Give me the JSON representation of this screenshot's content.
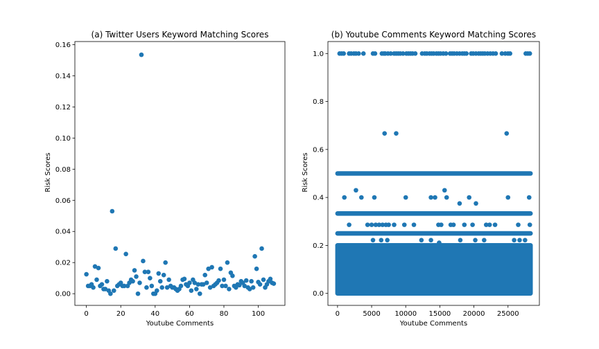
{
  "chart_data": [
    {
      "type": "scatter",
      "title": "(a) Twitter Users Keyword Matching Scores",
      "xlabel": "Youtube Comments",
      "ylabel": "Risk Scores",
      "xlim": [
        -6.7,
        115.5
      ],
      "ylim": [
        -0.0075,
        0.162
      ],
      "xticks": [
        0,
        20,
        40,
        60,
        80,
        100
      ],
      "xtick_labels": [
        "0",
        "20",
        "40",
        "60",
        "80",
        "100"
      ],
      "yticks": [
        0.0,
        0.02,
        0.04,
        0.06,
        0.08,
        0.1,
        0.12,
        0.14,
        0.16
      ],
      "ytick_labels": [
        "0.00",
        "0.02",
        "0.04",
        "0.06",
        "0.08",
        "0.10",
        "0.12",
        "0.14",
        "0.16"
      ],
      "grid": false,
      "marker_color": "#1f77b4",
      "points": [
        [
          0,
          0.0125
        ],
        [
          1,
          0.005
        ],
        [
          2,
          0.005
        ],
        [
          3,
          0.006
        ],
        [
          4,
          0.004
        ],
        [
          5,
          0.0175
        ],
        [
          6,
          0.009
        ],
        [
          7,
          0.0165
        ],
        [
          8,
          0.005
        ],
        [
          9,
          0.006
        ],
        [
          10,
          0.003
        ],
        [
          11,
          0.003
        ],
        [
          12,
          0.008
        ],
        [
          13,
          0.002
        ],
        [
          14,
          0.0
        ],
        [
          15,
          0.053
        ],
        [
          16,
          0.002
        ],
        [
          17,
          0.029
        ],
        [
          18,
          0.005
        ],
        [
          19,
          0.006
        ],
        [
          20,
          0.007
        ],
        [
          21,
          0.005
        ],
        [
          22,
          0.005
        ],
        [
          23,
          0.0255
        ],
        [
          24,
          0.005
        ],
        [
          25,
          0.007
        ],
        [
          26,
          0.009
        ],
        [
          27,
          0.008
        ],
        [
          28,
          0.015
        ],
        [
          29,
          0.011
        ],
        [
          30,
          0.0
        ],
        [
          31,
          0.007
        ],
        [
          32,
          0.1535
        ],
        [
          33,
          0.021
        ],
        [
          34,
          0.014
        ],
        [
          35,
          0.004
        ],
        [
          36,
          0.014
        ],
        [
          37,
          0.01
        ],
        [
          38,
          0.005
        ],
        [
          39,
          0.0
        ],
        [
          40,
          0.0
        ],
        [
          41,
          0.002
        ],
        [
          42,
          0.013
        ],
        [
          43,
          0.008
        ],
        [
          44,
          0.004
        ],
        [
          45,
          0.012
        ],
        [
          46,
          0.02
        ],
        [
          47,
          0.004
        ],
        [
          48,
          0.009
        ],
        [
          49,
          0.005
        ],
        [
          50,
          0.004
        ],
        [
          51,
          0.004
        ],
        [
          52,
          0.003
        ],
        [
          53,
          0.002
        ],
        [
          54,
          0.003
        ],
        [
          55,
          0.005
        ],
        [
          56,
          0.009
        ],
        [
          57,
          0.0095
        ],
        [
          58,
          0.006
        ],
        [
          59,
          0.005
        ],
        [
          60,
          0.007
        ],
        [
          61,
          0.002
        ],
        [
          62,
          0.009
        ],
        [
          63,
          0.007
        ],
        [
          64,
          0.003
        ],
        [
          65,
          0.006
        ],
        [
          66,
          0.0
        ],
        [
          67,
          0.006
        ],
        [
          68,
          0.006
        ],
        [
          69,
          0.012
        ],
        [
          70,
          0.007
        ],
        [
          71,
          0.016
        ],
        [
          72,
          0.004
        ],
        [
          73,
          0.017
        ],
        [
          74,
          0.005
        ],
        [
          75,
          0.006
        ],
        [
          76,
          0.007
        ],
        [
          77,
          0.0085
        ],
        [
          78,
          0.016
        ],
        [
          79,
          0.005
        ],
        [
          80,
          0.009
        ],
        [
          81,
          0.005
        ],
        [
          82,
          0.02
        ],
        [
          83,
          0.003
        ],
        [
          84,
          0.0135
        ],
        [
          85,
          0.0115
        ],
        [
          86,
          0.005
        ],
        [
          87,
          0.004
        ],
        [
          88,
          0.006
        ],
        [
          89,
          0.0055
        ],
        [
          90,
          0.008
        ],
        [
          91,
          0.007
        ],
        [
          92,
          0.005
        ],
        [
          93,
          0.0085
        ],
        [
          94,
          0.004
        ],
        [
          95,
          0.003
        ],
        [
          96,
          0.008
        ],
        [
          97,
          0.004
        ],
        [
          98,
          0.024
        ],
        [
          99,
          0.016
        ],
        [
          100,
          0.0075
        ],
        [
          101,
          0.006
        ],
        [
          102,
          0.029
        ],
        [
          103,
          0.009
        ],
        [
          104,
          0.004
        ],
        [
          105,
          0.006
        ],
        [
          106,
          0.008
        ],
        [
          107,
          0.0095
        ],
        [
          108,
          0.007
        ],
        [
          109,
          0.0065
        ]
      ]
    },
    {
      "type": "scatter",
      "title": "(b) Youtube Comments Keyword Matching Scores",
      "xlabel": "Youtube Comments",
      "ylabel": "Risk Scores",
      "xlim": [
        -1410,
        29600
      ],
      "ylim": [
        -0.05,
        1.05
      ],
      "xticks": [
        0,
        5000,
        10000,
        15000,
        20000,
        25000
      ],
      "xtick_labels": [
        "0",
        "5000",
        "10000",
        "15000",
        "20000",
        "25000"
      ],
      "yticks": [
        0.0,
        0.2,
        0.4,
        0.6,
        0.8,
        1.0
      ],
      "ytick_labels": [
        "0.0",
        "0.2",
        "0.4",
        "0.6",
        "0.8",
        "1.0"
      ],
      "grid": false,
      "marker_color": "#1f77b4",
      "x_extent": [
        0,
        28300
      ],
      "dense_band": [
        0.0,
        0.2
      ],
      "lines_y": [
        0.5,
        0.333,
        0.25,
        0.2
      ],
      "sparse_points": [
        [
          1000,
          0.4
        ],
        [
          2700,
          0.43
        ],
        [
          3500,
          0.4
        ],
        [
          1700,
          0.286
        ],
        [
          5400,
          0.4
        ],
        [
          4400,
          0.286
        ],
        [
          5000,
          0.286
        ],
        [
          5600,
          0.286
        ],
        [
          6100,
          0.286
        ],
        [
          6600,
          0.286
        ],
        [
          7100,
          0.286
        ],
        [
          7500,
          0.286
        ],
        [
          8300,
          0.286
        ],
        [
          9800,
          0.286
        ],
        [
          10000,
          0.4
        ],
        [
          11200,
          0.286
        ],
        [
          13700,
          0.4
        ],
        [
          14300,
          0.4
        ],
        [
          14800,
          0.286
        ],
        [
          15200,
          0.286
        ],
        [
          15700,
          0.43
        ],
        [
          16000,
          0.4
        ],
        [
          16600,
          0.286
        ],
        [
          17000,
          0.286
        ],
        [
          17900,
          0.375
        ],
        [
          18600,
          0.286
        ],
        [
          19300,
          0.4
        ],
        [
          19800,
          0.286
        ],
        [
          20300,
          0.375
        ],
        [
          21800,
          0.286
        ],
        [
          22300,
          0.286
        ],
        [
          23100,
          0.286
        ],
        [
          25000,
          0.4
        ],
        [
          26500,
          0.286
        ],
        [
          28100,
          0.4
        ],
        [
          28200,
          0.286
        ],
        [
          5200,
          0.222
        ],
        [
          6400,
          0.222
        ],
        [
          7300,
          0.222
        ],
        [
          12300,
          0.222
        ],
        [
          13700,
          0.222
        ],
        [
          14900,
          0.211
        ],
        [
          18000,
          0.222
        ],
        [
          20200,
          0.222
        ],
        [
          21500,
          0.222
        ],
        [
          25900,
          0.222
        ],
        [
          26700,
          0.222
        ],
        [
          27500,
          0.222
        ],
        [
          6900,
          0.667
        ],
        [
          8600,
          0.667
        ],
        [
          24800,
          0.667
        ]
      ],
      "ones_x": [
        300,
        600,
        900,
        1700,
        2000,
        2400,
        2700,
        3100,
        3800,
        5200,
        5500,
        6500,
        6800,
        7000,
        7400,
        7800,
        8300,
        8600,
        8900,
        9200,
        9600,
        10100,
        10400,
        10700,
        11000,
        11400,
        12400,
        12800,
        13100,
        13500,
        13800,
        14100,
        14500,
        14800,
        15100,
        15500,
        15900,
        16500,
        16800,
        17100,
        17500,
        17900,
        18300,
        18600,
        18900,
        19600,
        19900,
        20300,
        20700,
        21000,
        21300,
        21600,
        22000,
        22400,
        22800,
        23200,
        24100,
        24600,
        25000,
        25300,
        27600,
        27900,
        28200
      ]
    }
  ]
}
